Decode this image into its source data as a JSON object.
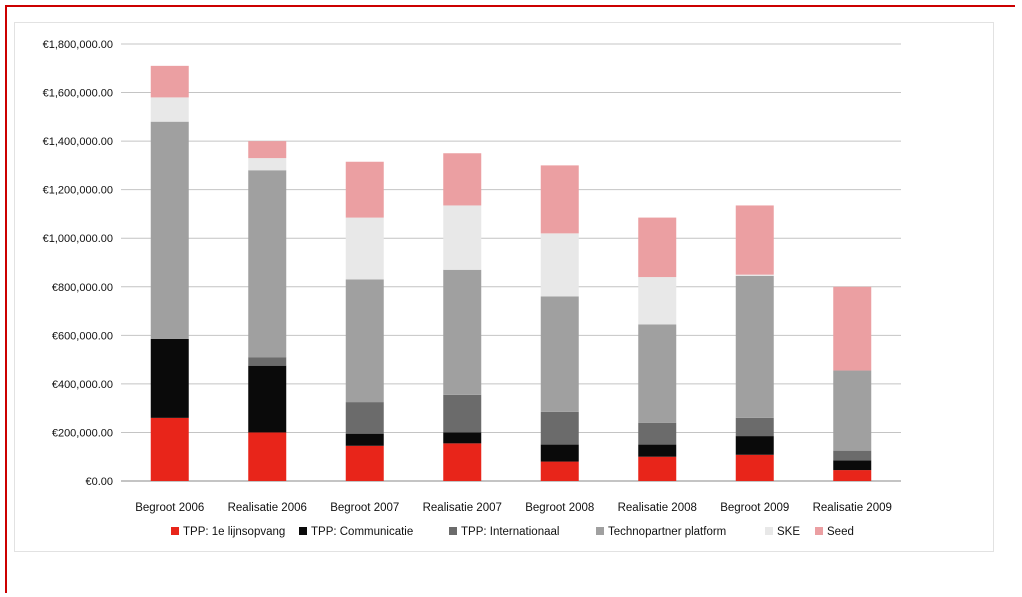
{
  "chart_data": {
    "type": "bar",
    "stacked": true,
    "title": "",
    "xlabel": "",
    "ylabel": "",
    "ylim": [
      0,
      1800000
    ],
    "ytick_step": 200000,
    "ytick_labels": [
      "€0.00",
      "€200,000.00",
      "€400,000.00",
      "€600,000.00",
      "€800,000.00",
      "€1,000,000.00",
      "€1,200,000.00",
      "€1,400,000.00",
      "€1,600,000.00",
      "€1,800,000.00"
    ],
    "grid": true,
    "legend_position": "bottom",
    "categories": [
      "Begroot 2006",
      "Realisatie 2006",
      "Begroot 2007",
      "Realisatie 2007",
      "Begroot 2008",
      "Realisatie 2008",
      "Begroot 2009",
      "Realisatie 2009"
    ],
    "series": [
      {
        "name": "TPP: 1e lijnsopvang",
        "color": "#e8251a",
        "values": [
          260000,
          200000,
          145000,
          155000,
          80000,
          100000,
          108000,
          45000
        ]
      },
      {
        "name": "TPP: Communicatie",
        "color": "#0a0a0a",
        "values": [
          325000,
          275000,
          50000,
          45000,
          70000,
          50000,
          77000,
          40000
        ]
      },
      {
        "name": "TPP: Internationaal",
        "color": "#6b6b6b",
        "values": [
          0,
          35000,
          130000,
          155000,
          135000,
          90000,
          75000,
          40000
        ]
      },
      {
        "name": "Technopartner platform",
        "color": "#a0a0a0",
        "values": [
          895000,
          770000,
          505000,
          515000,
          475000,
          405000,
          585000,
          330000
        ]
      },
      {
        "name": "SKE",
        "color": "#e8e8e8",
        "values": [
          100000,
          50000,
          255000,
          265000,
          260000,
          195000,
          5000,
          0
        ]
      },
      {
        "name": "Seed",
        "color": "#eb9fa2",
        "values": [
          130000,
          70000,
          230000,
          215000,
          280000,
          245000,
          285000,
          345000
        ]
      }
    ]
  }
}
